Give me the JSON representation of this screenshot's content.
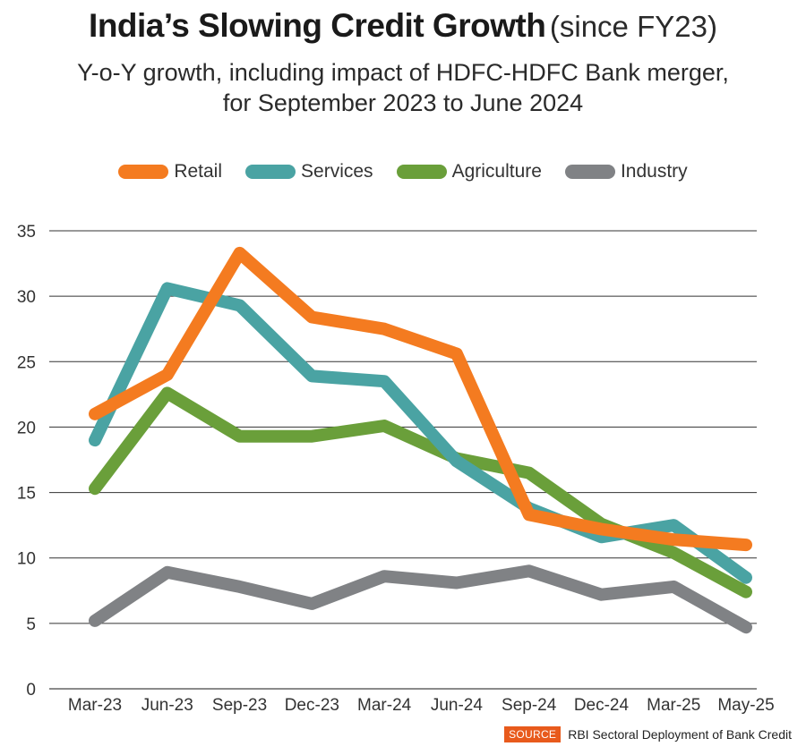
{
  "title": {
    "main": "India’s Slowing Credit Growth",
    "suffix": "(since FY23)"
  },
  "subtitle": {
    "line1": "Y-o-Y growth, including impact of HDFC-HDFC Bank merger,",
    "line2": "for September 2023 to June 2024"
  },
  "source": {
    "tag": "SOURCE",
    "text": "RBI Sectoral Deployment of Bank Credit"
  },
  "chart_data": {
    "type": "line",
    "categories": [
      "Mar-23",
      "Jun-23",
      "Sep-23",
      "Dec-23",
      "Mar-24",
      "Jun-24",
      "Sep-24",
      "Dec-24",
      "Mar-25",
      "May-25"
    ],
    "ylim": [
      0,
      35
    ],
    "yticks": [
      0,
      5,
      10,
      15,
      20,
      25,
      30,
      35
    ],
    "grid": true,
    "legend_position": "top",
    "series": [
      {
        "name": "Retail",
        "color": "#f47b20",
        "values": [
          21.0,
          24.0,
          33.3,
          28.4,
          27.5,
          25.6,
          13.3,
          12.2,
          11.4,
          11.0
        ]
      },
      {
        "name": "Services",
        "color": "#4aa3a3",
        "values": [
          19.0,
          30.6,
          29.3,
          23.9,
          23.5,
          17.4,
          13.8,
          11.6,
          12.5,
          8.5
        ]
      },
      {
        "name": "Agriculture",
        "color": "#6a9f3a",
        "values": [
          15.3,
          22.6,
          19.3,
          19.3,
          20.1,
          17.6,
          16.5,
          12.6,
          10.4,
          7.4
        ]
      },
      {
        "name": "Industry",
        "color": "#808285",
        "values": [
          5.2,
          8.9,
          7.8,
          6.5,
          8.6,
          8.1,
          9.0,
          7.2,
          7.8,
          4.7
        ]
      }
    ]
  }
}
